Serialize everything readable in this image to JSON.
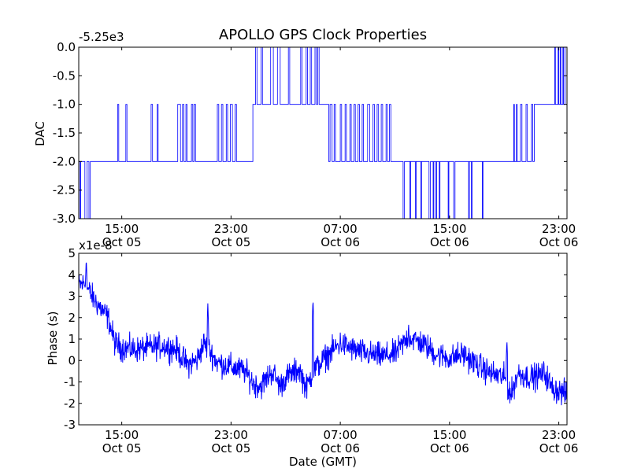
{
  "figure": {
    "title": "APOLLO GPS Clock Properties",
    "line_color": "#0000ff",
    "frame_color": "#000000"
  },
  "chart_data": [
    {
      "type": "line",
      "name": "dac-panel",
      "title": "APOLLO GPS Clock Properties",
      "ylabel": "DAC",
      "xlabel": "",
      "offset_label": "-5.25e3",
      "x_tick_labels": [
        {
          "time": "15:00",
          "date": "Oct 05"
        },
        {
          "time": "23:00",
          "date": "Oct 05"
        },
        {
          "time": "07:00",
          "date": "Oct 06"
        },
        {
          "time": "15:00",
          "date": "Oct 06"
        },
        {
          "time": "23:00",
          "date": "Oct 06"
        }
      ],
      "x_ticks_hours": [
        15,
        23,
        31,
        39,
        47
      ],
      "y_tick_labels": [
        "0.0",
        "-0.5",
        "-1.0",
        "-1.5",
        "-2.0",
        "-2.5",
        "-3.0"
      ],
      "y_ticks": [
        0,
        -0.5,
        -1,
        -1.5,
        -2,
        -2.5,
        -3
      ],
      "xlim_hours": [
        11.85,
        47.6
      ],
      "ylim": [
        -3,
        0
      ],
      "grid": false,
      "step_series": [
        [
          11.85,
          -2
        ],
        [
          11.95,
          -3
        ],
        [
          12.0,
          -2
        ],
        [
          12.3,
          -3
        ],
        [
          12.45,
          -2
        ],
        [
          12.6,
          -3
        ],
        [
          12.7,
          -2
        ],
        [
          14.7,
          -1
        ],
        [
          14.78,
          -2
        ],
        [
          15.3,
          -1
        ],
        [
          15.38,
          -2
        ],
        [
          17.15,
          -1
        ],
        [
          17.25,
          -2
        ],
        [
          17.6,
          -1
        ],
        [
          17.66,
          -2
        ],
        [
          19.1,
          -1
        ],
        [
          19.3,
          -2
        ],
        [
          19.45,
          -1
        ],
        [
          19.55,
          -2
        ],
        [
          19.7,
          -1
        ],
        [
          19.78,
          -2
        ],
        [
          20.1,
          -1
        ],
        [
          20.2,
          -2
        ],
        [
          20.3,
          -1
        ],
        [
          20.4,
          -2
        ],
        [
          22.0,
          -1
        ],
        [
          22.1,
          -2
        ],
        [
          22.3,
          -1
        ],
        [
          22.4,
          -2
        ],
        [
          22.65,
          -1
        ],
        [
          22.75,
          -2
        ],
        [
          22.95,
          -1
        ],
        [
          23.1,
          -2
        ],
        [
          23.3,
          -1
        ],
        [
          23.4,
          -2
        ],
        [
          24.6,
          -1
        ],
        [
          24.8,
          0
        ],
        [
          24.9,
          -1
        ],
        [
          25.2,
          0
        ],
        [
          25.3,
          -1
        ],
        [
          25.9,
          0
        ],
        [
          26.1,
          -1
        ],
        [
          26.4,
          0
        ],
        [
          26.6,
          -1
        ],
        [
          27.2,
          0
        ],
        [
          27.3,
          -1
        ],
        [
          28.1,
          0
        ],
        [
          28.2,
          -1
        ],
        [
          28.5,
          0
        ],
        [
          28.6,
          -1
        ],
        [
          28.8,
          0
        ],
        [
          28.9,
          -1
        ],
        [
          29.15,
          0
        ],
        [
          29.25,
          -1
        ],
        [
          29.35,
          0
        ],
        [
          29.45,
          -1
        ],
        [
          30.0,
          -1
        ],
        [
          30.15,
          -2
        ],
        [
          30.25,
          -1
        ],
        [
          30.4,
          -2
        ],
        [
          30.55,
          -1
        ],
        [
          30.65,
          -2
        ],
        [
          31.0,
          -1
        ],
        [
          31.1,
          -2
        ],
        [
          31.35,
          -1
        ],
        [
          31.45,
          -2
        ],
        [
          31.7,
          -1
        ],
        [
          31.8,
          -2
        ],
        [
          32.0,
          -1
        ],
        [
          32.1,
          -2
        ],
        [
          32.3,
          -1
        ],
        [
          32.4,
          -2
        ],
        [
          32.6,
          -1
        ],
        [
          32.7,
          -2
        ],
        [
          33.0,
          -1
        ],
        [
          33.15,
          -2
        ],
        [
          33.4,
          -1
        ],
        [
          33.5,
          -2
        ],
        [
          33.7,
          -1
        ],
        [
          33.8,
          -2
        ],
        [
          34.0,
          -1
        ],
        [
          34.1,
          -2
        ],
        [
          34.35,
          -1
        ],
        [
          34.45,
          -2
        ],
        [
          34.6,
          -1
        ],
        [
          34.7,
          -2
        ],
        [
          35.6,
          -3
        ],
        [
          35.7,
          -2
        ],
        [
          36.1,
          -3
        ],
        [
          36.15,
          -2
        ],
        [
          36.5,
          -3
        ],
        [
          36.55,
          -2
        ],
        [
          36.9,
          -3
        ],
        [
          36.95,
          -2
        ],
        [
          37.5,
          -3
        ],
        [
          37.6,
          -2
        ],
        [
          37.8,
          -3
        ],
        [
          37.85,
          -2
        ],
        [
          38.0,
          -3
        ],
        [
          38.05,
          -2
        ],
        [
          38.25,
          -3
        ],
        [
          38.3,
          -2
        ],
        [
          38.9,
          -3
        ],
        [
          38.95,
          -2
        ],
        [
          39.3,
          -3
        ],
        [
          39.4,
          -2
        ],
        [
          40.4,
          -3
        ],
        [
          40.45,
          -2
        ],
        [
          40.6,
          -3
        ],
        [
          40.65,
          -2
        ],
        [
          41.4,
          -3
        ],
        [
          41.45,
          -2
        ],
        [
          43.7,
          -1
        ],
        [
          43.75,
          -2
        ],
        [
          43.9,
          -1
        ],
        [
          43.95,
          -2
        ],
        [
          44.2,
          -1
        ],
        [
          44.3,
          -2
        ],
        [
          44.6,
          -1
        ],
        [
          44.7,
          -2
        ],
        [
          45.0,
          -1
        ],
        [
          45.1,
          -2
        ],
        [
          45.2,
          -1
        ],
        [
          46.7,
          0
        ],
        [
          46.75,
          -1
        ],
        [
          46.95,
          0
        ],
        [
          47.0,
          -1
        ],
        [
          47.1,
          0
        ],
        [
          47.15,
          -1
        ],
        [
          47.3,
          0
        ],
        [
          47.35,
          -1
        ],
        [
          47.45,
          0
        ],
        [
          47.6,
          0
        ]
      ]
    },
    {
      "type": "line",
      "name": "phase-panel",
      "title": "",
      "ylabel": "Phase (s)",
      "xlabel": "Date (GMT)",
      "offset_label": "x1e-8",
      "x_tick_labels": [
        {
          "time": "15:00",
          "date": "Oct 05"
        },
        {
          "time": "23:00",
          "date": "Oct 05"
        },
        {
          "time": "07:00",
          "date": "Oct 06"
        },
        {
          "time": "15:00",
          "date": "Oct 06"
        },
        {
          "time": "23:00",
          "date": "Oct 06"
        }
      ],
      "x_ticks_hours": [
        15,
        23,
        31,
        39,
        47
      ],
      "y_tick_labels": [
        "5",
        "4",
        "3",
        "2",
        "1",
        "0",
        "-1",
        "-2",
        "-3"
      ],
      "y_ticks": [
        5,
        4,
        3,
        2,
        1,
        0,
        -1,
        -2,
        -3
      ],
      "xlim_hours": [
        11.85,
        47.6
      ],
      "ylim": [
        -3,
        5
      ],
      "grid": false,
      "trend_points": [
        [
          11.85,
          3.5
        ],
        [
          12.3,
          3.6
        ],
        [
          12.8,
          3.0
        ],
        [
          13.5,
          2.4
        ],
        [
          14.0,
          2.0
        ],
        [
          14.5,
          0.8
        ],
        [
          15.0,
          0.6
        ],
        [
          16.0,
          0.5
        ],
        [
          17.0,
          0.6
        ],
        [
          18.0,
          0.7
        ],
        [
          19.0,
          0.5
        ],
        [
          19.8,
          -0.2
        ],
        [
          20.5,
          0.0
        ],
        [
          21.0,
          0.8
        ],
        [
          21.6,
          0.3
        ],
        [
          22.0,
          -0.1
        ],
        [
          23.0,
          -0.3
        ],
        [
          24.0,
          -0.5
        ],
        [
          24.7,
          -1.1
        ],
        [
          25.2,
          -1.2
        ],
        [
          26.0,
          -0.5
        ],
        [
          26.6,
          -1.2
        ],
        [
          27.0,
          -0.8
        ],
        [
          28.0,
          -0.4
        ],
        [
          28.5,
          -1.3
        ],
        [
          29.0,
          -0.5
        ],
        [
          30.0,
          0.2
        ],
        [
          31.0,
          0.8
        ],
        [
          32.0,
          0.5
        ],
        [
          33.0,
          0.3
        ],
        [
          34.0,
          0.2
        ],
        [
          35.0,
          0.3
        ],
        [
          36.0,
          1.1
        ],
        [
          37.0,
          0.8
        ],
        [
          38.0,
          0.3
        ],
        [
          39.0,
          0.1
        ],
        [
          40.0,
          0.3
        ],
        [
          41.0,
          -0.2
        ],
        [
          42.0,
          -0.6
        ],
        [
          43.0,
          -0.8
        ],
        [
          43.5,
          -1.6
        ],
        [
          44.0,
          -0.6
        ],
        [
          45.0,
          -0.8
        ],
        [
          46.0,
          -0.6
        ],
        [
          46.5,
          -1.3
        ],
        [
          47.0,
          -1.4
        ],
        [
          47.6,
          -1.6
        ]
      ],
      "spikes": [
        [
          12.4,
          4.8
        ],
        [
          21.3,
          2.7
        ],
        [
          29.0,
          2.9
        ],
        [
          36.0,
          1.8
        ],
        [
          43.2,
          1.0
        ]
      ],
      "noise_amplitude": 0.6
    }
  ]
}
